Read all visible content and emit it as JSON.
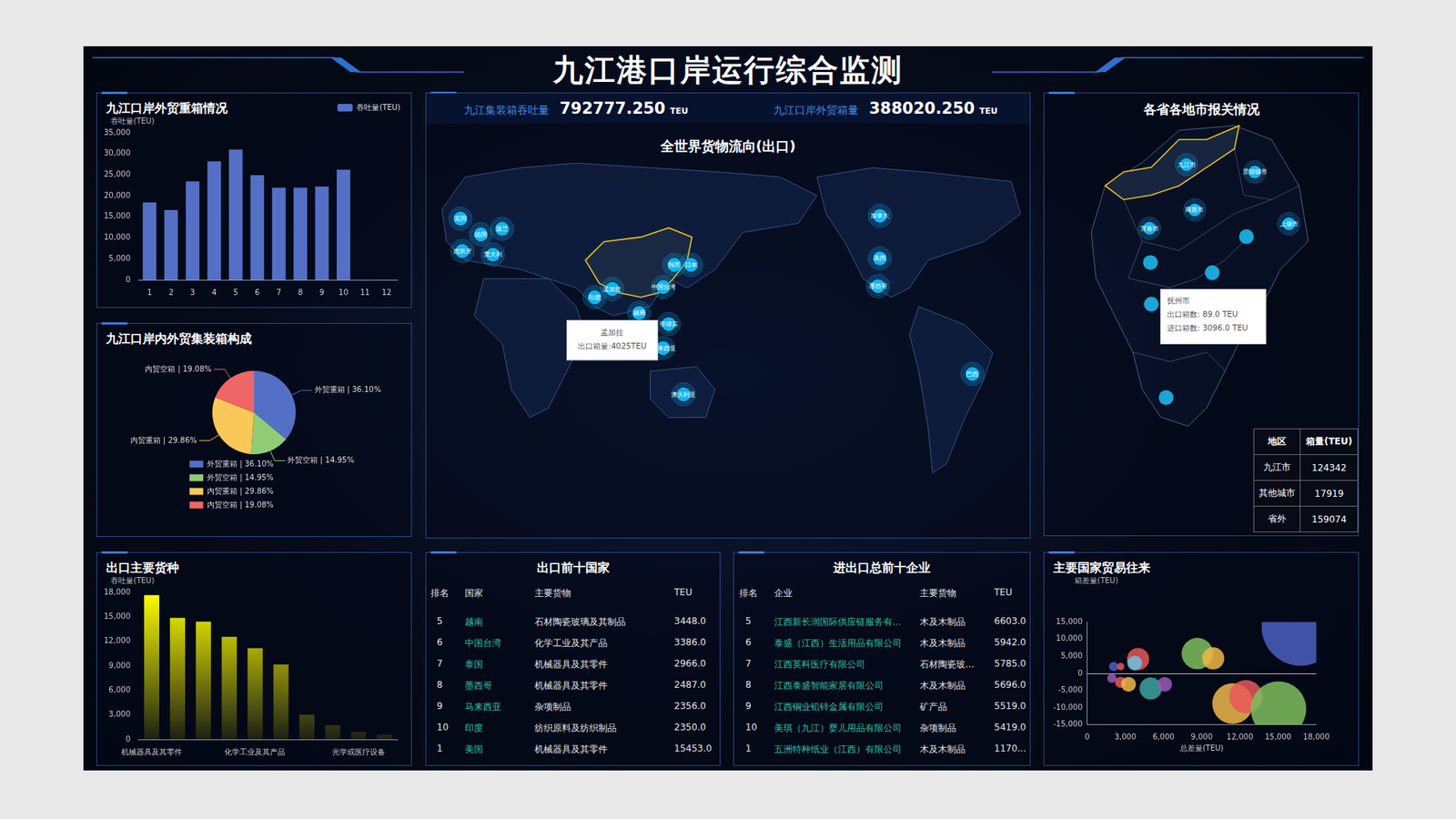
{
  "header": {
    "title": "九江港口岸运行综合监测"
  },
  "kpis": [
    {
      "label": "九江集装箱吞吐量",
      "value": "792777.250",
      "unit": "TEU"
    },
    {
      "label": "九江口岸外贸箱量",
      "value": "388020.250",
      "unit": "TEU"
    }
  ],
  "chart_data": [
    {
      "type": "bar",
      "title": "九江口岸外贸重箱情况",
      "y_label": "吞吐量(TEU)",
      "categories": [
        "1",
        "2",
        "3",
        "4",
        "5",
        "6",
        "7",
        "8",
        "9",
        "10",
        "11",
        "12"
      ],
      "series": [
        {
          "name": "吞吐量(TEU)",
          "color": "#5470c6",
          "values": [
            18400,
            16600,
            23400,
            28200,
            31000,
            24900,
            21900,
            21900,
            22200,
            26200,
            null,
            null
          ]
        }
      ],
      "ylim": [
        0,
        35000
      ],
      "yticks": [
        0,
        {
          "value": 5000,
          "label": "5,000"
        },
        {
          "value": 10000,
          "label": "10,000"
        },
        {
          "value": 15000,
          "label": "15,000"
        },
        {
          "value": 20000,
          "label": "20,000"
        },
        {
          "value": 25000,
          "label": "25,000"
        },
        {
          "value": 30000,
          "label": "30,000"
        },
        {
          "value": 35000,
          "label": "35,000"
        }
      ],
      "grid": false,
      "legend": "top-right"
    },
    {
      "type": "pie",
      "title": "九江口岸内外贸集装箱构成",
      "categories": [
        "外贸重箱 | 36.10%",
        "外贸空箱 | 14.95%",
        "内贸重箱 | 29.86%",
        "内贸空箱 | 19.08%"
      ],
      "values": [
        36.1,
        14.95,
        29.86,
        19.08
      ],
      "colors": [
        "#5470c6",
        "#91cc75",
        "#fac858",
        "#ee6666"
      ],
      "legend": "bottom",
      "data_labels": true
    },
    {
      "type": "bar",
      "title": "出口主要货种",
      "y_label": "吞吐量(TEU)",
      "categories": [
        "机械器具及其零件",
        null,
        null,
        null,
        "化学工业及其产品",
        null,
        null,
        null,
        "光学或医疗设备",
        null
      ],
      "values": [
        17650,
        14870,
        14400,
        12540,
        11150,
        9170,
        3020,
        1740,
        930,
        580
      ],
      "color": "#ffff00",
      "ylim": [
        0,
        18000
      ],
      "yticks": [
        0,
        {
          "value": 3000,
          "label": "3,000"
        },
        {
          "value": 6000,
          "label": "6,000"
        },
        {
          "value": 9000,
          "label": "9,000"
        },
        {
          "value": 12000,
          "label": "12,000"
        },
        {
          "value": 15000,
          "label": "15,000"
        },
        {
          "value": 18000,
          "label": "18,000"
        }
      ],
      "grid": false
    },
    {
      "type": "bubble",
      "title": "主要国家贸易往来",
      "x_label": "总差量(TEU)",
      "y_label": "箱差量(TEU)",
      "x": [
        16760,
        8660,
        9900,
        4000,
        3740,
        2080,
        2630,
        1940,
        2630,
        3250,
        4990,
        6090,
        11430,
        12470,
        15030
      ],
      "values": [
        13600,
        5800,
        4400,
        4200,
        3000,
        2000,
        2000,
        -1400,
        -2600,
        -3200,
        -4400,
        -3200,
        -8800,
        -6800,
        -10400
      ],
      "sizes": [
        42,
        17,
        12,
        12,
        8,
        5,
        4,
        5,
        6,
        8,
        12,
        8,
        22,
        18,
        30
      ],
      "colors": [
        "#4a5fc1",
        "#7fbf5f",
        "#f0b84a",
        "#e8585a",
        "#6ec3e0",
        "#4a5fc1",
        "#e8585a",
        "#9b59b6",
        "#e8585a",
        "#f0b84a",
        "#3ba6a0",
        "#9b59b6",
        "#f0b84a",
        "#e8585a",
        "#7fbf5f"
      ],
      "xlim": [
        0,
        18000
      ],
      "xticks": [
        0,
        {
          "value": 3000,
          "label": "3,000"
        },
        {
          "value": 6000,
          "label": "6,000"
        },
        {
          "value": 9000,
          "label": "9,000"
        },
        {
          "value": 12000,
          "label": "12,000"
        },
        {
          "value": 15000,
          "label": "15,000"
        },
        {
          "value": 18000,
          "label": "18,000"
        }
      ],
      "ylim": [
        -15000,
        15000
      ],
      "yticks": [
        {
          "value": -15000,
          "label": "-15,000"
        },
        {
          "value": -10000,
          "label": "-10,000"
        },
        {
          "value": -5000,
          "label": "-5,000"
        },
        0,
        {
          "value": 5000,
          "label": "5,000"
        },
        {
          "value": 10000,
          "label": "10,000"
        },
        {
          "value": 15000,
          "label": "15,000"
        }
      ],
      "grid": false
    }
  ],
  "world_map": {
    "title": "全世界货物流向(出口)",
    "points": [
      "英国",
      "德国",
      "波兰",
      "西班牙",
      "意大利",
      "韩国",
      "日本",
      "中国台湾",
      "印度",
      "孟加拉",
      "越南",
      "菲律宾",
      "马来西亚",
      "澳大利亚",
      "加拿大",
      "美国",
      "墨西哥",
      "巴西"
    ],
    "tooltip": [
      "孟加拉",
      "出口箱量:4025TEU"
    ]
  },
  "province_map": {
    "title": "各省各地市报关情况",
    "cities": [
      "九江市",
      "景德镇市",
      "南昌市",
      "宜春市",
      "上饶市"
    ],
    "tooltip": [
      "抚州市",
      "出口箱数: 89.0 TEU",
      "进口箱数: 3096.0 TEU"
    ],
    "table": {
      "header": [
        "地区",
        "箱量(TEU)"
      ],
      "rows": [
        [
          "九江市",
          "124342"
        ],
        [
          "其他城市",
          "17919"
        ],
        [
          "省外",
          "159074"
        ]
      ]
    }
  },
  "tables": [
    {
      "title": "出口前十国家",
      "header": [
        "排名",
        "国家",
        "主要货物",
        "TEU"
      ],
      "rows": [
        [
          "5",
          "越南",
          "石材陶瓷玻璃及其制品",
          "3448.0"
        ],
        [
          "6",
          "中国台湾",
          "化学工业及其产品",
          "3386.0"
        ],
        [
          "7",
          "泰国",
          "机械器具及其零件",
          "2966.0"
        ],
        [
          "8",
          "墨西哥",
          "机械器具及其零件",
          "2487.0"
        ],
        [
          "9",
          "马来西亚",
          "杂项制品",
          "2356.0"
        ],
        [
          "10",
          "印度",
          "纺织原料及纺织制品",
          "2350.0"
        ],
        [
          "1",
          "美国",
          "机械器具及其零件",
          "15453.0"
        ]
      ]
    },
    {
      "title": "进出口总前十企业",
      "header": [
        "排名",
        "企业",
        "主要货物",
        "TEU"
      ],
      "rows": [
        [
          "5",
          "江西新长润国际供应链服务有...",
          "木及木制品",
          "6603.0"
        ],
        [
          "6",
          "泰盛（江西）生活用品有限公司",
          "木及木制品",
          "5942.0"
        ],
        [
          "7",
          "江西英科医疗有限公司",
          "石材陶瓷玻...",
          "5785.0"
        ],
        [
          "8",
          "江西泰盛智能家居有限公司",
          "木及木制品",
          "5696.0"
        ],
        [
          "9",
          "江西铜业铅锌金属有限公司",
          "矿产品",
          "5519.0"
        ],
        [
          "10",
          "美琪（九江）婴儿用品有限公司",
          "杂项制品",
          "5419.0"
        ],
        [
          "1",
          "五洲特种纸业（江西）有限公司",
          "木及木制品",
          "1170..."
        ]
      ]
    }
  ]
}
